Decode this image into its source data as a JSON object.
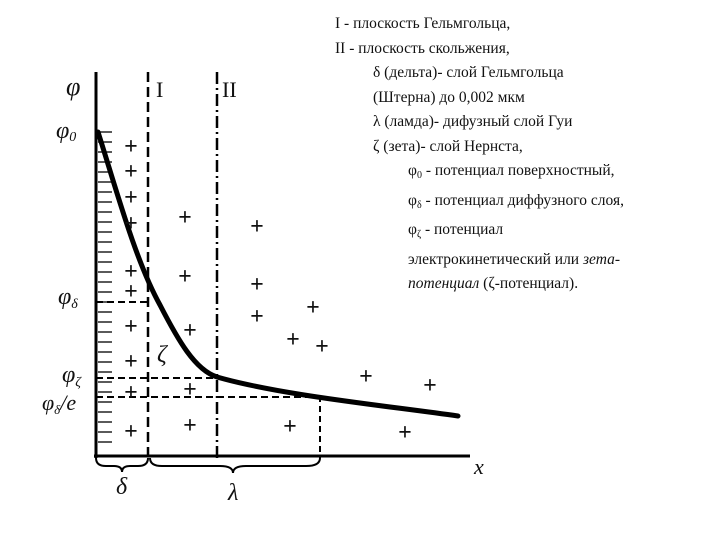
{
  "axes": {
    "y_label": "φ",
    "x_label": "x"
  },
  "planes": {
    "I": "I",
    "II": "II"
  },
  "potential_labels": {
    "phi0": {
      "sym": "φ",
      "sub": "0"
    },
    "phi_delta": {
      "sym": "φ",
      "sub": "δ"
    },
    "phi_zeta": {
      "sym": "φ",
      "sub": "ζ"
    },
    "phi_delta_e": {
      "sym": "φ",
      "sub": "δ",
      "tail": "/e"
    }
  },
  "zeta_symbol": "ζ",
  "region_labels": {
    "delta": "δ",
    "lambda": "λ"
  },
  "legend": {
    "line1": "I - плоскость Гельмгольца,",
    "line2": "II - плоскость скольжения,",
    "line3": "δ (дельта)- слой Гельмгольца",
    "line4": "(Штерна) до 0,002 мкм",
    "line5": "λ (ламда)- дифузный слой Гуи",
    "line6": "ζ (зета)- слой Нернста,",
    "line7_sym": "φ",
    "line7_sub": "0",
    "line7_text": " - потенциал поверхностный,",
    "line8_sym": "φ",
    "line8_sub": "δ",
    "line8_text": " - потенциал диффузного слоя,",
    "line9_sym": "φ",
    "line9_sub": "ζ",
    "line9_text": " - потенциал",
    "line10": "электрокинетический  или ",
    "line10_italic": "зета-",
    "line11_italic": "потенциал",
    "line11_text": " (ζ-потенциал)."
  },
  "plus_sign": "+"
}
